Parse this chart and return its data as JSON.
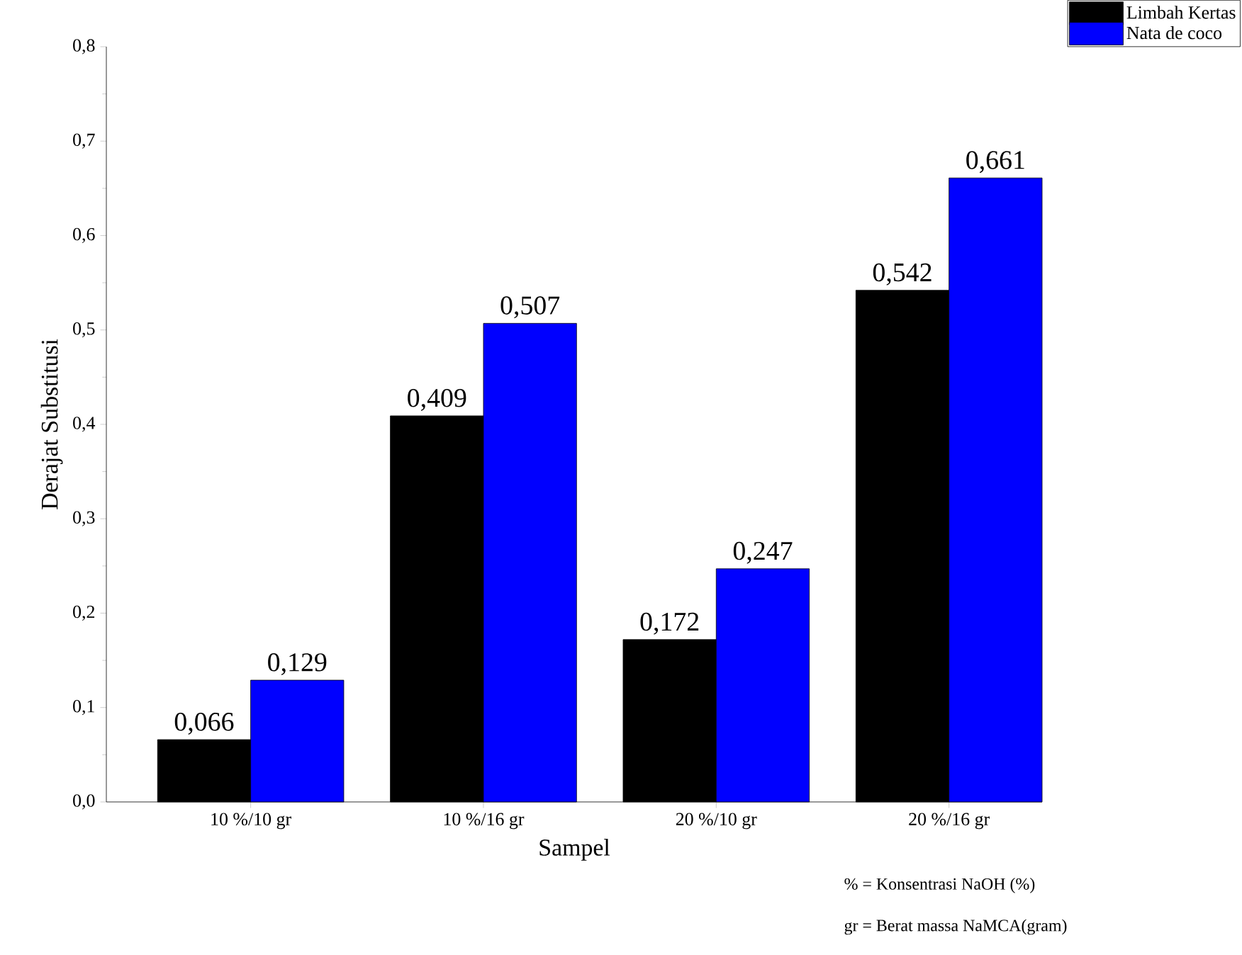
{
  "chart_data": {
    "type": "bar",
    "xlabel": "Sampel",
    "ylabel": "Derajat Substitusi",
    "categories": [
      "10 %/10 gr",
      "10 %/16 gr",
      "20 %/10 gr",
      "20 %/16 gr"
    ],
    "series": [
      {
        "name": "Limbah Kertas",
        "color": "#000000",
        "values": [
          0.066,
          0.409,
          0.172,
          0.542
        ],
        "value_labels": [
          "0,066",
          "0,409",
          "0,172",
          "0,542"
        ]
      },
      {
        "name": "Nata de coco",
        "color": "#0000ff",
        "values": [
          0.129,
          0.507,
          0.247,
          0.661
        ],
        "value_labels": [
          "0,129",
          "0,507",
          "0,247",
          "0,661"
        ]
      }
    ],
    "ylim": [
      0,
      0.8
    ],
    "yticks": [
      {
        "value": 0,
        "label": "0,0"
      },
      {
        "value": 0.1,
        "label": "0,1"
      },
      {
        "value": 0.2,
        "label": "0,2"
      },
      {
        "value": 0.3,
        "label": "0,3"
      },
      {
        "value": 0.4,
        "label": "0,4"
      },
      {
        "value": 0.5,
        "label": "0,5"
      },
      {
        "value": 0.6,
        "label": "0,6"
      },
      {
        "value": 0.7,
        "label": "0,7"
      },
      {
        "value": 0.8,
        "label": "0,8"
      }
    ],
    "legend": "top right",
    "grid": false,
    "annotations": [
      "% = Konsentrasi NaOH (%)",
      "gr = Berat massa NaMCA(gram)"
    ]
  }
}
